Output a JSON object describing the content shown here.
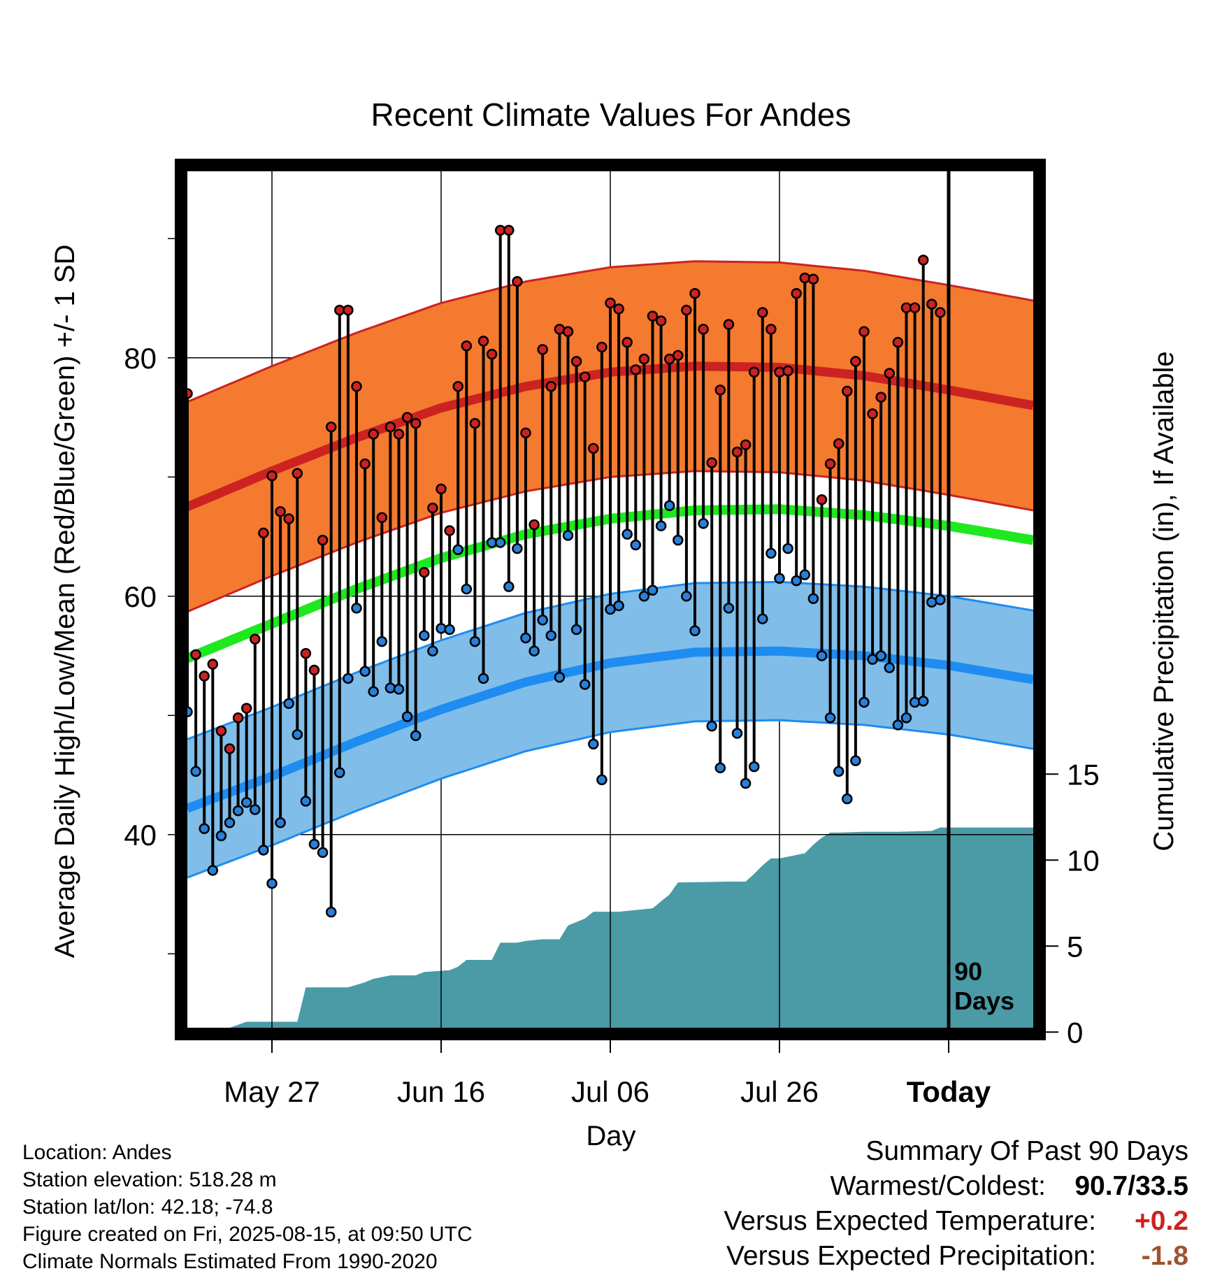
{
  "chart_data": {
    "type": "line",
    "title": "Recent Climate Values For Andes",
    "xlabel": "Day",
    "ylabel": "Average Daily High/Low/Mean (Red/Blue/Green) +/- 1 SD",
    "y2label": "Cumulative Precipitation (in), If Available",
    "xlim": [
      0,
      100
    ],
    "ylim": [
      24,
      96
    ],
    "y2lim": [
      0,
      26
    ],
    "xticks": [
      {
        "x": 10,
        "label": "May 27"
      },
      {
        "x": 30,
        "label": "Jun 16"
      },
      {
        "x": 50,
        "label": "Jul 06"
      },
      {
        "x": 70,
        "label": "Jul 26"
      },
      {
        "x": 90,
        "label": "Today"
      }
    ],
    "yticks": [
      40,
      60,
      80
    ],
    "y2ticks": [
      0,
      5,
      10,
      15
    ],
    "today_x": 90,
    "days_label_line1": "90",
    "days_label_line2": "Days",
    "normals": {
      "high": {
        "x": [
          0,
          10,
          20,
          30,
          40,
          50,
          60,
          70,
          80,
          90,
          100
        ],
        "y": [
          67.5,
          70.5,
          73.3,
          75.8,
          77.6,
          78.8,
          79.3,
          79.2,
          78.5,
          77.3,
          76.0
        ],
        "sd": 8.8
      },
      "mean": {
        "x": [
          0,
          10,
          20,
          30,
          40,
          50,
          60,
          70,
          80,
          90,
          100
        ],
        "y": [
          54.8,
          57.7,
          60.6,
          63.2,
          65.2,
          66.5,
          67.2,
          67.3,
          66.8,
          65.9,
          64.7
        ]
      },
      "low": {
        "x": [
          0,
          10,
          20,
          30,
          40,
          50,
          60,
          70,
          80,
          90,
          100
        ],
        "y": [
          42.2,
          44.9,
          47.8,
          50.5,
          52.8,
          54.4,
          55.3,
          55.4,
          55.0,
          54.2,
          53.0
        ],
        "sd": 5.8
      }
    },
    "series": [
      {
        "name": "High",
        "color": "#cc2222",
        "values": [
          77.0,
          55.1,
          53.3,
          54.3,
          48.7,
          47.2,
          49.8,
          50.6,
          56.4,
          65.3,
          70.1,
          67.1,
          66.5,
          70.3,
          55.2,
          53.8,
          64.7,
          74.2,
          84.0,
          84.0,
          77.6,
          71.1,
          73.6,
          66.6,
          74.2,
          73.6,
          75.0,
          74.5,
          62.0,
          67.4,
          69.0,
          65.5,
          77.6,
          81.0,
          74.5,
          81.4,
          80.3,
          90.7,
          90.7,
          86.4,
          73.7,
          66.0,
          80.7,
          77.6,
          82.4,
          82.2,
          79.7,
          78.4,
          72.4,
          80.9,
          84.6,
          84.1,
          81.3,
          79.0,
          79.9,
          83.5,
          83.1,
          79.9,
          80.2,
          84.0,
          85.4,
          82.4,
          71.2,
          77.3,
          82.8,
          72.1,
          72.7,
          78.8,
          83.8,
          82.4,
          78.8,
          78.9,
          85.4,
          86.7,
          86.6,
          68.1,
          71.1,
          72.8,
          77.2,
          79.7,
          82.2,
          75.3,
          76.7,
          78.7,
          81.3,
          84.2,
          84.2,
          88.2,
          84.5,
          83.8
        ]
      },
      {
        "name": "Low",
        "color": "#2a80d8",
        "values": [
          50.3,
          45.3,
          40.5,
          37.0,
          39.9,
          41.0,
          42.0,
          42.7,
          42.1,
          38.7,
          35.9,
          41.0,
          51.0,
          48.4,
          42.8,
          39.2,
          38.5,
          33.5,
          45.2,
          53.1,
          59.0,
          53.7,
          52.0,
          56.2,
          52.3,
          52.2,
          49.9,
          48.3,
          56.7,
          55.4,
          57.3,
          57.2,
          63.9,
          60.6,
          56.2,
          53.1,
          64.5,
          64.5,
          60.8,
          64.0,
          56.5,
          55.4,
          58.0,
          56.7,
          53.2,
          65.1,
          57.2,
          52.6,
          47.6,
          44.6,
          58.9,
          59.2,
          65.2,
          64.3,
          60.0,
          60.5,
          65.9,
          67.6,
          64.7,
          60.0,
          57.1,
          66.1,
          49.1,
          45.6,
          59.0,
          48.5,
          44.3,
          45.7,
          58.1,
          63.6,
          61.5,
          64.0,
          61.3,
          61.8,
          59.8,
          55.0,
          49.8,
          45.3,
          43.0,
          46.2,
          51.1,
          54.7,
          55.0,
          54.0,
          49.2,
          49.8,
          51.1,
          51.2,
          59.5,
          59.7
        ]
      },
      {
        "name": "Cumulative Precipitation",
        "color": "#4a9ba6",
        "x": [
          0,
          4,
          5,
          7,
          10,
          13,
          14,
          19,
          21,
          22,
          24,
          27,
          28,
          31,
          32,
          33,
          36,
          37,
          39,
          40,
          42,
          44,
          45,
          47,
          48,
          51,
          52,
          55,
          56,
          57,
          58,
          64,
          66,
          67,
          68,
          69,
          70,
          73,
          74,
          75,
          76,
          77,
          80,
          84,
          88,
          89,
          90,
          91,
          100
        ],
        "cum": [
          0,
          0,
          0.25,
          0.6,
          0.6,
          0.6,
          2.6,
          2.6,
          2.9,
          3.1,
          3.3,
          3.3,
          3.5,
          3.6,
          3.8,
          4.2,
          4.2,
          5.2,
          5.2,
          5.3,
          5.4,
          5.4,
          6.2,
          6.6,
          7.0,
          7.0,
          7.05,
          7.2,
          7.6,
          8.0,
          8.7,
          8.75,
          8.75,
          9.2,
          9.7,
          10.1,
          10.1,
          10.4,
          10.9,
          11.3,
          11.6,
          11.6,
          11.65,
          11.65,
          11.7,
          11.9,
          11.9,
          11.9,
          11.9
        ]
      }
    ],
    "grid": true,
    "legend": "none"
  },
  "info": {
    "location": "Location: Andes",
    "elevation": "Station elevation: 518.28 m",
    "latlon": "Station lat/lon: 42.18; -74.8",
    "created": "Figure created on Fri, 2025-08-15, at 09:50 UTC",
    "normals_note": "Climate Normals Estimated From 1990-2020"
  },
  "summary": {
    "heading": "Summary Of Past 90 Days",
    "warm_cold_label": "Warmest/Coldest:",
    "warm_cold_value": "90.7/33.5",
    "temp_label": "Versus Expected Temperature:",
    "temp_value": "+0.2",
    "temp_color": "#cc2222",
    "precip_label": "Versus Expected Precipitation:",
    "precip_value": "-1.8",
    "precip_color": "#a0522d"
  },
  "colors": {
    "high_band": "#f37a2e",
    "high_line": "#cc2222",
    "mean_line": "#1ee81e",
    "low_band": "#80bde8",
    "low_line": "#1e8cf0",
    "precip_fill": "#4a9ba6"
  }
}
